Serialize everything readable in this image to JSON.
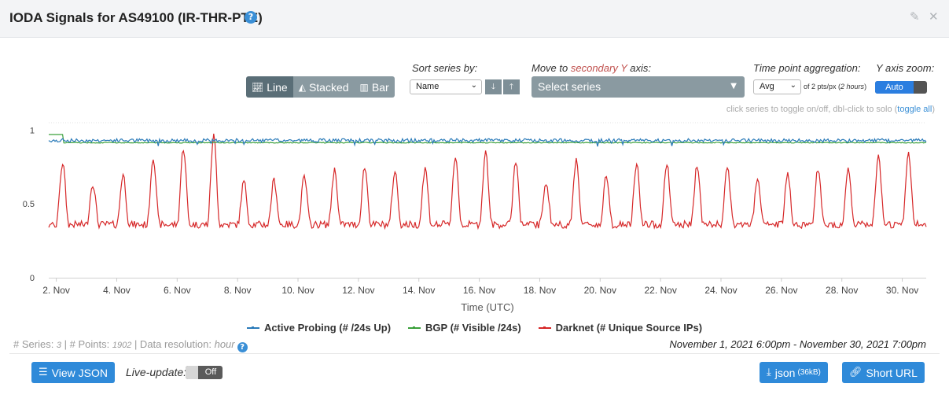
{
  "header": {
    "title": "IODA Signals for AS49100 (IR-THR-PTE)",
    "help_glyph": "?",
    "edit_glyph": "✎",
    "close_glyph": "✕"
  },
  "controls": {
    "chart_types": [
      {
        "label": "Line",
        "icon": "line-chart-icon",
        "active": true
      },
      {
        "label": "Stacked",
        "icon": "area-chart-icon",
        "active": false
      },
      {
        "label": "Bar",
        "icon": "bar-chart-icon",
        "active": false
      }
    ],
    "sort_label": "Sort series by:",
    "sort_value": "Name",
    "sort_down_glyph": "🡓",
    "sort_up_glyph": "🡑",
    "secondary_label_prefix": "Move to ",
    "secondary_label_accent": "secondary Y",
    "secondary_label_suffix": " axis:",
    "series_placeholder": "Select series",
    "aggregation_label": "Time point aggregation:",
    "aggregation_value": "Avg",
    "aggregation_note_prefix": "of 2 pts/px (",
    "aggregation_note_italic": "2 hours",
    "aggregation_note_suffix": ")",
    "zoom_label": "Y axis zoom:",
    "zoom_value": "Auto",
    "hint_text": "click series to toggle on/off, dbl-click to solo (",
    "hint_link": "toggle all",
    "hint_close": ")"
  },
  "chart_data": {
    "type": "line",
    "xlabel": "Time (UTC)",
    "x_ticks": [
      "2. Nov",
      "4. Nov",
      "6. Nov",
      "8. Nov",
      "10. Nov",
      "12. Nov",
      "14. Nov",
      "16. Nov",
      "18. Nov",
      "20. Nov",
      "22. Nov",
      "24. Nov",
      "26. Nov",
      "28. Nov",
      "30. Nov"
    ],
    "x_range": [
      "2021-11-01T18:00Z",
      "2021-11-30T19:00Z"
    ],
    "y_ticks": [
      "0",
      "0.5",
      "1"
    ],
    "ylim": [
      0,
      1.05
    ],
    "grid": false,
    "legend_placement": "bottom",
    "series": [
      {
        "name": "Active Probing (# /24s Up)",
        "color": "#2b7bb9",
        "baseline": 0.93,
        "noise": 0.012
      },
      {
        "name": "BGP (# Visible /24s)",
        "color": "#3ba03b",
        "baseline": 0.915,
        "noise": 0.003,
        "start_value": 0.97
      },
      {
        "name": "Darknet (# Unique Source IPs)",
        "color": "#d62728",
        "baseline": 0.36,
        "daily_peaks": [
          0.78,
          0.64,
          0.7,
          0.82,
          0.88,
          0.96,
          0.65,
          0.66,
          0.68,
          0.73,
          0.75,
          0.72,
          0.74,
          0.82,
          0.85,
          0.79,
          0.65,
          0.8,
          0.69,
          0.77,
          0.77,
          0.76,
          0.74,
          0.66,
          0.7,
          0.73,
          0.74,
          0.81,
          0.84
        ]
      }
    ]
  },
  "meta": {
    "series_label": "# Series: ",
    "series_count": "3",
    "points_label": " | # Points: ",
    "points_count": "1902",
    "res_label": " | Data resolution: ",
    "res_value": "hour",
    "time_range": "November 1, 2021 6:00pm - November 30, 2021 7:00pm"
  },
  "footer": {
    "view_json": "View JSON",
    "live_label": "Live-update:",
    "live_value": "Off",
    "json_label": "json",
    "json_size": "(36kB)",
    "short_url": "Short URL"
  },
  "colors": {
    "primary": "#2f8ad9",
    "slate": "#8a9aa1",
    "slate_active": "#5a6e77"
  }
}
